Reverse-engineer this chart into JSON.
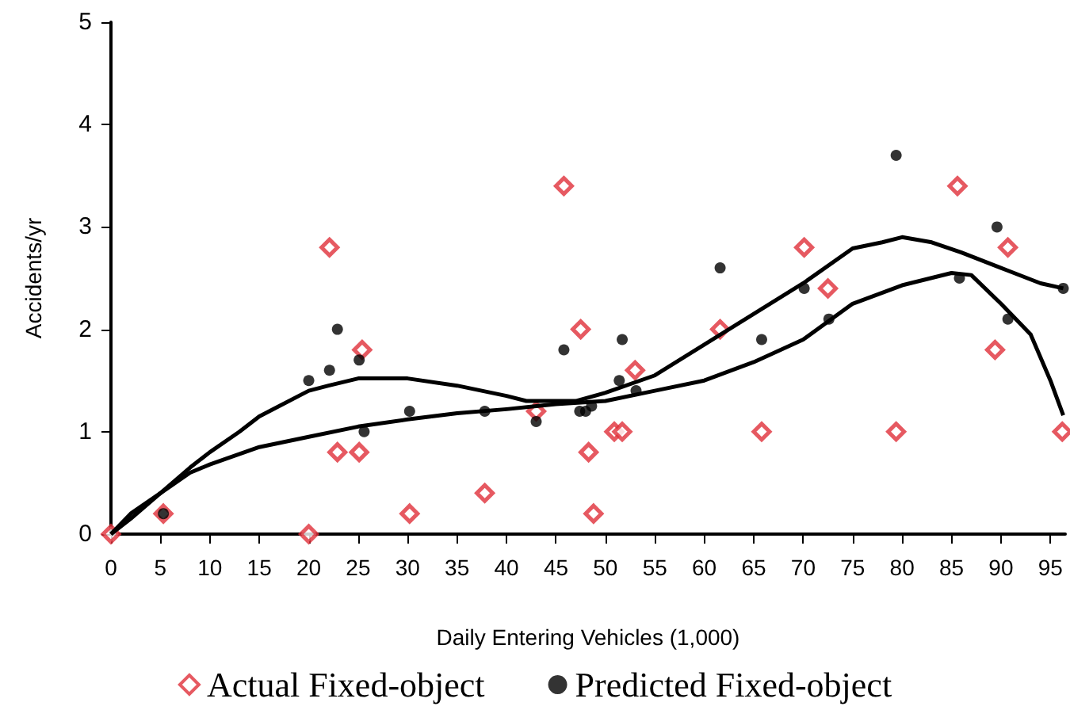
{
  "chart_data": {
    "type": "scatter",
    "xlabel": "Daily Entering Vehicles (1,000)",
    "ylabel": "Accidents/yr",
    "xlim": [
      0,
      96.5
    ],
    "xticks": [
      0,
      5,
      10,
      15,
      20,
      25,
      30,
      35,
      40,
      45,
      50,
      55,
      60,
      65,
      70,
      75,
      80,
      85,
      90,
      95
    ],
    "ylim": [
      0,
      5
    ],
    "yticks": [
      0,
      1,
      2,
      3,
      4,
      5
    ],
    "grid": false,
    "legend": "bottom",
    "series": [
      {
        "name": "Actual Fixed-object",
        "color": "#e0303a",
        "marker": "diamond",
        "x": [
          0,
          5.3,
          20,
          22.1,
          22.9,
          25.1,
          25.4,
          30.2,
          37.8,
          43,
          45.8,
          47.5,
          48.3,
          48.8,
          50.9,
          51.7,
          53,
          61.6,
          65.8,
          70.1,
          72.5,
          79.4,
          85.6,
          89.4,
          90.7,
          96.2
        ],
        "values": [
          0,
          0.2,
          0,
          2.8,
          0.8,
          0.8,
          1.8,
          0.2,
          0.4,
          1.2,
          3.4,
          2.0,
          0.8,
          0.2,
          1.0,
          1.0,
          1.6,
          2.0,
          1.0,
          2.8,
          2.4,
          1.0,
          3.4,
          1.8,
          2.8,
          1.0
        ]
      },
      {
        "name": "Predicted Fixed-object",
        "color": "#000000",
        "marker": "circle",
        "x": [
          5.3,
          20,
          22.1,
          22.9,
          25.1,
          25.6,
          30.2,
          37.8,
          43,
          45.8,
          47.4,
          48,
          48.6,
          51.4,
          51.7,
          53.1,
          61.6,
          65.8,
          70.1,
          72.6,
          79.4,
          85.8,
          89.6,
          90.7,
          96.3
        ],
        "values": [
          0.2,
          1.5,
          1.6,
          2.0,
          1.7,
          1.0,
          1.2,
          1.2,
          1.1,
          1.8,
          1.2,
          1.2,
          1.25,
          1.5,
          1.9,
          1.4,
          2.6,
          1.9,
          2.4,
          2.1,
          3.7,
          2.5,
          3.0,
          2.1,
          2.4
        ]
      },
      {
        "type": "line",
        "color": "#000000",
        "marker": "none",
        "x": [
          0,
          2,
          5,
          8,
          10,
          13,
          15,
          20,
          22,
          25,
          30,
          35,
          40,
          42,
          47,
          50,
          55,
          60,
          65,
          70,
          75,
          78,
          80,
          83,
          86,
          90,
          94,
          96.3
        ],
        "values": [
          0,
          0.2,
          0.4,
          0.65,
          0.8,
          1.0,
          1.15,
          1.4,
          1.45,
          1.52,
          1.52,
          1.45,
          1.35,
          1.3,
          1.3,
          1.38,
          1.55,
          1.85,
          2.15,
          2.45,
          2.79,
          2.85,
          2.9,
          2.85,
          2.75,
          2.6,
          2.45,
          2.4
        ]
      },
      {
        "type": "line",
        "color": "#000000",
        "marker": "none",
        "x": [
          0,
          2,
          5,
          8,
          10,
          15,
          20,
          25,
          30,
          35,
          40,
          45,
          50,
          55,
          60,
          65,
          70,
          75,
          80,
          85,
          87,
          90,
          93,
          95,
          96.3
        ],
        "values": [
          0,
          0.15,
          0.4,
          0.6,
          0.68,
          0.85,
          0.95,
          1.05,
          1.12,
          1.18,
          1.22,
          1.27,
          1.3,
          1.4,
          1.5,
          1.68,
          1.9,
          2.25,
          2.43,
          2.55,
          2.53,
          2.25,
          1.95,
          1.5,
          1.16
        ]
      }
    ]
  }
}
